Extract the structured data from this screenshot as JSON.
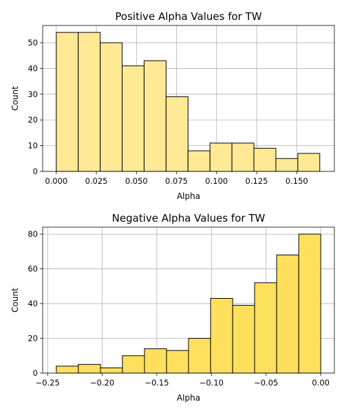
{
  "chart_data": [
    {
      "type": "bar",
      "title": "Positive Alpha Values for TW",
      "xlabel": "Alpha",
      "ylabel": "Count",
      "bar_color": "#ffe994",
      "grid": true,
      "xlim": [
        -0.0085,
        0.1735
      ],
      "ylim": [
        0,
        56.7
      ],
      "xticks": [
        {
          "value": 0.0,
          "label": "0.000"
        },
        {
          "value": 0.025,
          "label": "0.025"
        },
        {
          "value": 0.05,
          "label": "0.050"
        },
        {
          "value": 0.075,
          "label": "0.075"
        },
        {
          "value": 0.1,
          "label": "0.100"
        },
        {
          "value": 0.125,
          "label": "0.125"
        },
        {
          "value": 0.15,
          "label": "0.150"
        }
      ],
      "yticks": [
        {
          "value": 0,
          "label": "0"
        },
        {
          "value": 10,
          "label": "10"
        },
        {
          "value": 20,
          "label": "20"
        },
        {
          "value": 30,
          "label": "30"
        },
        {
          "value": 40,
          "label": "40"
        },
        {
          "value": 50,
          "label": "50"
        }
      ],
      "bins": [
        {
          "x0": 0.0,
          "x1": 0.0137,
          "count": 54
        },
        {
          "x0": 0.0137,
          "x1": 0.0274,
          "count": 54
        },
        {
          "x0": 0.0274,
          "x1": 0.0411,
          "count": 50
        },
        {
          "x0": 0.0411,
          "x1": 0.0548,
          "count": 41
        },
        {
          "x0": 0.0548,
          "x1": 0.0685,
          "count": 43
        },
        {
          "x0": 0.0685,
          "x1": 0.0822,
          "count": 29
        },
        {
          "x0": 0.0822,
          "x1": 0.0959,
          "count": 8
        },
        {
          "x0": 0.0959,
          "x1": 0.1096,
          "count": 11
        },
        {
          "x0": 0.1096,
          "x1": 0.1233,
          "count": 11
        },
        {
          "x0": 0.1233,
          "x1": 0.137,
          "count": 9
        },
        {
          "x0": 0.137,
          "x1": 0.1507,
          "count": 5
        },
        {
          "x0": 0.1507,
          "x1": 0.1644,
          "count": 7
        }
      ]
    },
    {
      "type": "bar",
      "title": "Negative Alpha Values for TW",
      "xlabel": "Alpha",
      "ylabel": "Count",
      "bar_color": "#ffe05c",
      "grid": true,
      "xlim": [
        -0.2545,
        0.0125
      ],
      "ylim": [
        0,
        84
      ],
      "xticks": [
        {
          "value": -0.25,
          "label": "−0.25"
        },
        {
          "value": -0.2,
          "label": "−0.20"
        },
        {
          "value": -0.15,
          "label": "−0.15"
        },
        {
          "value": -0.1,
          "label": "−0.10"
        },
        {
          "value": -0.05,
          "label": "−0.05"
        },
        {
          "value": 0.0,
          "label": "0.00"
        }
      ],
      "yticks": [
        {
          "value": 0,
          "label": "0"
        },
        {
          "value": 20,
          "label": "20"
        },
        {
          "value": 40,
          "label": "40"
        },
        {
          "value": 60,
          "label": "60"
        },
        {
          "value": 80,
          "label": "80"
        }
      ],
      "bins": [
        {
          "x0": -0.242,
          "x1": -0.2218,
          "count": 4
        },
        {
          "x0": -0.2218,
          "x1": -0.2016,
          "count": 5
        },
        {
          "x0": -0.2016,
          "x1": -0.1815,
          "count": 3
        },
        {
          "x0": -0.1815,
          "x1": -0.1613,
          "count": 10
        },
        {
          "x0": -0.1613,
          "x1": -0.1411,
          "count": 14
        },
        {
          "x0": -0.1411,
          "x1": -0.121,
          "count": 13
        },
        {
          "x0": -0.121,
          "x1": -0.1008,
          "count": 20
        },
        {
          "x0": -0.1008,
          "x1": -0.0806,
          "count": 43
        },
        {
          "x0": -0.0806,
          "x1": -0.0605,
          "count": 39
        },
        {
          "x0": -0.0605,
          "x1": -0.0403,
          "count": 52
        },
        {
          "x0": -0.0403,
          "x1": -0.0201,
          "count": 68
        },
        {
          "x0": -0.0201,
          "x1": 0.0,
          "count": 80
        }
      ]
    }
  ]
}
